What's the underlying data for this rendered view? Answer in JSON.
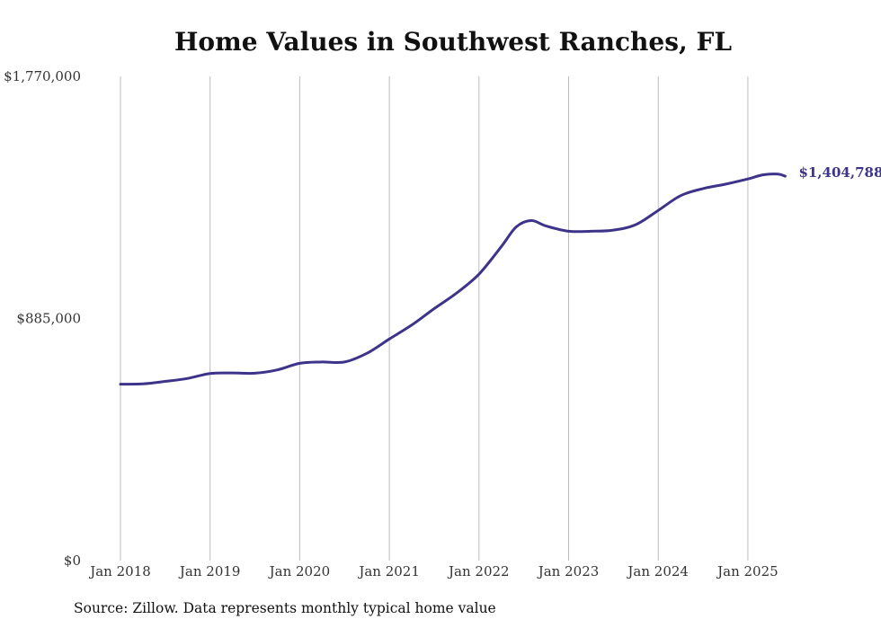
{
  "chart_data": {
    "type": "line",
    "title": "Home Values in Southwest Ranches, FL",
    "source": "Source: Zillow. Data represents monthly typical home value",
    "xlabel": "",
    "ylabel": "",
    "ylim": [
      0,
      1770000
    ],
    "yticks": [
      {
        "value": 0,
        "label": "$0"
      },
      {
        "value": 885000,
        "label": "$885,000"
      },
      {
        "value": 1770000,
        "label": "$1,770,000"
      }
    ],
    "xticks": [
      {
        "value": "2018-01",
        "label": "Jan 2018"
      },
      {
        "value": "2019-01",
        "label": "Jan 2019"
      },
      {
        "value": "2020-01",
        "label": "Jan 2020"
      },
      {
        "value": "2021-01",
        "label": "Jan 2021"
      },
      {
        "value": "2022-01",
        "label": "Jan 2022"
      },
      {
        "value": "2023-01",
        "label": "Jan 2023"
      },
      {
        "value": "2024-01",
        "label": "Jan 2024"
      },
      {
        "value": "2025-01",
        "label": "Jan 2025"
      }
    ],
    "grid": "vertical",
    "line_color": "#3d3389",
    "end_label": "$1,404,788",
    "series": [
      {
        "name": "",
        "points": [
          {
            "x": "2018-01",
            "y": 645000
          },
          {
            "x": "2018-04",
            "y": 646000
          },
          {
            "x": "2018-07",
            "y": 655000
          },
          {
            "x": "2018-10",
            "y": 666000
          },
          {
            "x": "2019-01",
            "y": 684000
          },
          {
            "x": "2019-04",
            "y": 686000
          },
          {
            "x": "2019-07",
            "y": 685000
          },
          {
            "x": "2019-10",
            "y": 697000
          },
          {
            "x": "2020-01",
            "y": 721000
          },
          {
            "x": "2020-04",
            "y": 726000
          },
          {
            "x": "2020-07",
            "y": 726000
          },
          {
            "x": "2020-10",
            "y": 758000
          },
          {
            "x": "2021-01",
            "y": 810000
          },
          {
            "x": "2021-04",
            "y": 861000
          },
          {
            "x": "2021-07",
            "y": 921000
          },
          {
            "x": "2021-10",
            "y": 978000
          },
          {
            "x": "2022-01",
            "y": 1047000
          },
          {
            "x": "2022-04",
            "y": 1148000
          },
          {
            "x": "2022-06",
            "y": 1220000
          },
          {
            "x": "2022-08",
            "y": 1243000
          },
          {
            "x": "2022-10",
            "y": 1223000
          },
          {
            "x": "2023-01",
            "y": 1204000
          },
          {
            "x": "2023-04",
            "y": 1204000
          },
          {
            "x": "2023-07",
            "y": 1208000
          },
          {
            "x": "2023-10",
            "y": 1228000
          },
          {
            "x": "2024-01",
            "y": 1280000
          },
          {
            "x": "2024-04",
            "y": 1334000
          },
          {
            "x": "2024-07",
            "y": 1360000
          },
          {
            "x": "2024-10",
            "y": 1376000
          },
          {
            "x": "2025-01",
            "y": 1395000
          },
          {
            "x": "2025-03",
            "y": 1410000
          },
          {
            "x": "2025-05",
            "y": 1413000
          },
          {
            "x": "2025-06",
            "y": 1405000
          }
        ]
      }
    ]
  }
}
